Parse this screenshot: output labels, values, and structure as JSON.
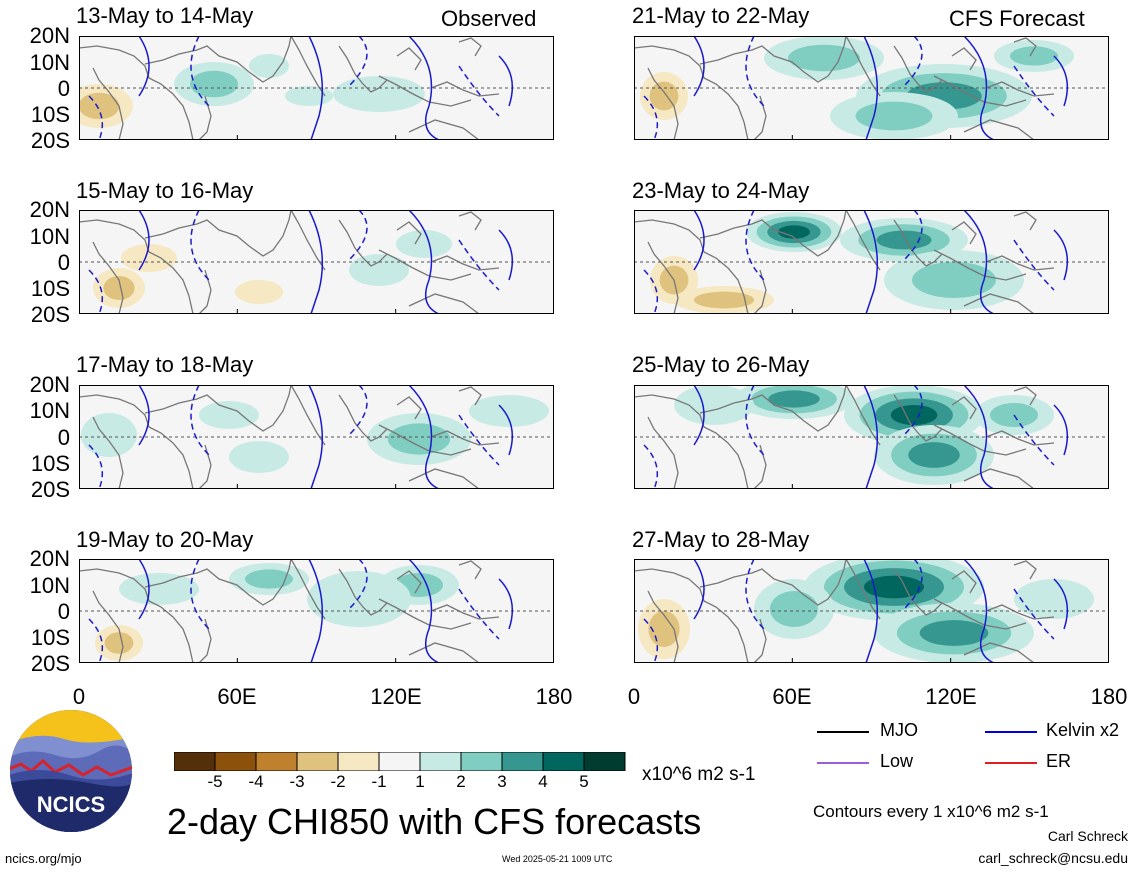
{
  "figure": {
    "title": "2-day CHI850 with CFS forecasts",
    "observed_label": "Observed",
    "forecast_label": "CFS Forecast",
    "units": "x10^6 m2 s-1",
    "contour_note": "Contours every 1 x10^6 m2 s-1",
    "author": "Carl Schreck",
    "email": "carl_schreck@ncsu.edu",
    "site": "ncics.org/mjo",
    "timestamp": "Wed 2025-05-21 1009 UTC",
    "logo_text": "NCICS"
  },
  "axes": {
    "lat_ticks": [
      "20N",
      "10N",
      "0",
      "10S",
      "20S"
    ],
    "lon_ticks": [
      "0",
      "60E",
      "120E",
      "180"
    ]
  },
  "panels": {
    "observed": [
      {
        "period": "13-May to 14-May"
      },
      {
        "period": "15-May to 16-May"
      },
      {
        "period": "17-May to 18-May"
      },
      {
        "period": "19-May to 20-May"
      }
    ],
    "forecast": [
      {
        "period": "21-May to 22-May"
      },
      {
        "period": "23-May to 24-May"
      },
      {
        "period": "25-May to 26-May"
      },
      {
        "period": "27-May to 28-May"
      }
    ]
  },
  "colorbar": {
    "ticks": [
      "-5",
      "-4",
      "-3",
      "-2",
      "-1",
      "1",
      "2",
      "3",
      "4",
      "5"
    ],
    "colors": [
      "#54300a",
      "#8c510a",
      "#bf812d",
      "#dfc27d",
      "#f6e8c3",
      "#f5f5f5",
      "#c7eae5",
      "#80cdc1",
      "#35978f",
      "#01665e",
      "#003c30"
    ]
  },
  "legend": [
    {
      "label": "MJO",
      "color": "#000000"
    },
    {
      "label": "Kelvin x2",
      "color": "#0000dd"
    },
    {
      "label": "Low",
      "color": "#9a5fd6"
    },
    {
      "label": "ER",
      "color": "#e02020"
    }
  ],
  "colors": {
    "kelvin_contour": "#1a1acc",
    "coastline": "#777777",
    "equator": "#555555"
  }
}
